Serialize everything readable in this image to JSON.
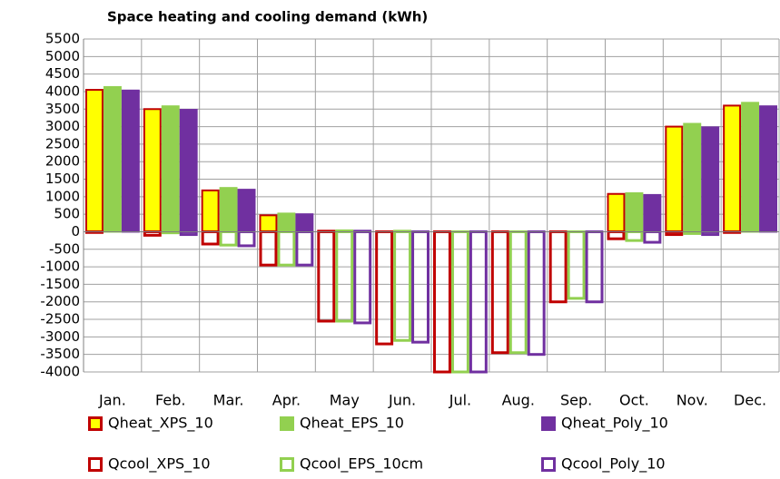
{
  "chart_data": {
    "type": "bar",
    "title": "Space heating and cooling demand (kWh)",
    "categories": [
      "Jan.",
      "Feb.",
      "Mar.",
      "Apr.",
      "May",
      "Jun.",
      "Jul.",
      "Aug.",
      "Sep.",
      "Oct.",
      "Nov.",
      "Dec."
    ],
    "ylim": [
      -4000,
      5500
    ],
    "yticks": [
      -4000,
      -3500,
      -3000,
      -2500,
      -2000,
      -1500,
      -1000,
      -500,
      0,
      500,
      1000,
      1500,
      2000,
      2500,
      3000,
      3500,
      4000,
      4500,
      5000,
      5500
    ],
    "grid": true,
    "series": [
      {
        "name": "Qheat_XPS_10",
        "color": "#ffff00",
        "edgecolor": "#c00000",
        "filled": true,
        "values": [
          4050,
          3500,
          1180,
          470,
          30,
          0,
          0,
          0,
          0,
          1080,
          3000,
          3600
        ]
      },
      {
        "name": "Qheat_EPS_10",
        "color": "#92d050",
        "edgecolor": "#92d050",
        "filled": true,
        "values": [
          4130,
          3580,
          1250,
          520,
          40,
          30,
          0,
          0,
          0,
          1100,
          3080,
          3680
        ]
      },
      {
        "name": "Qheat_Poly_10",
        "color": "#7030a0",
        "edgecolor": "#7030a0",
        "filled": true,
        "values": [
          4030,
          3480,
          1200,
          500,
          30,
          0,
          0,
          0,
          0,
          1050,
          2980,
          3580
        ]
      },
      {
        "name": "Qcool_XPS_10",
        "color": "#c00000",
        "edgecolor": "#c00000",
        "filled": false,
        "values": [
          -20,
          -100,
          -350,
          -950,
          -2550,
          -3200,
          -4000,
          -3450,
          -2000,
          -200,
          -80,
          -20
        ]
      },
      {
        "name": "Qcool_EPS_10cm",
        "color": "#92d050",
        "edgecolor": "#92d050",
        "filled": false,
        "values": [
          0,
          -30,
          -380,
          -950,
          -2550,
          -3100,
          -4000,
          -3450,
          -1900,
          -250,
          -50,
          0
        ]
      },
      {
        "name": "Qcool_Poly_10",
        "color": "#7030a0",
        "edgecolor": "#7030a0",
        "filled": false,
        "values": [
          0,
          -80,
          -400,
          -950,
          -2600,
          -3150,
          -4000,
          -3500,
          -2000,
          -300,
          -80,
          0
        ]
      }
    ]
  }
}
